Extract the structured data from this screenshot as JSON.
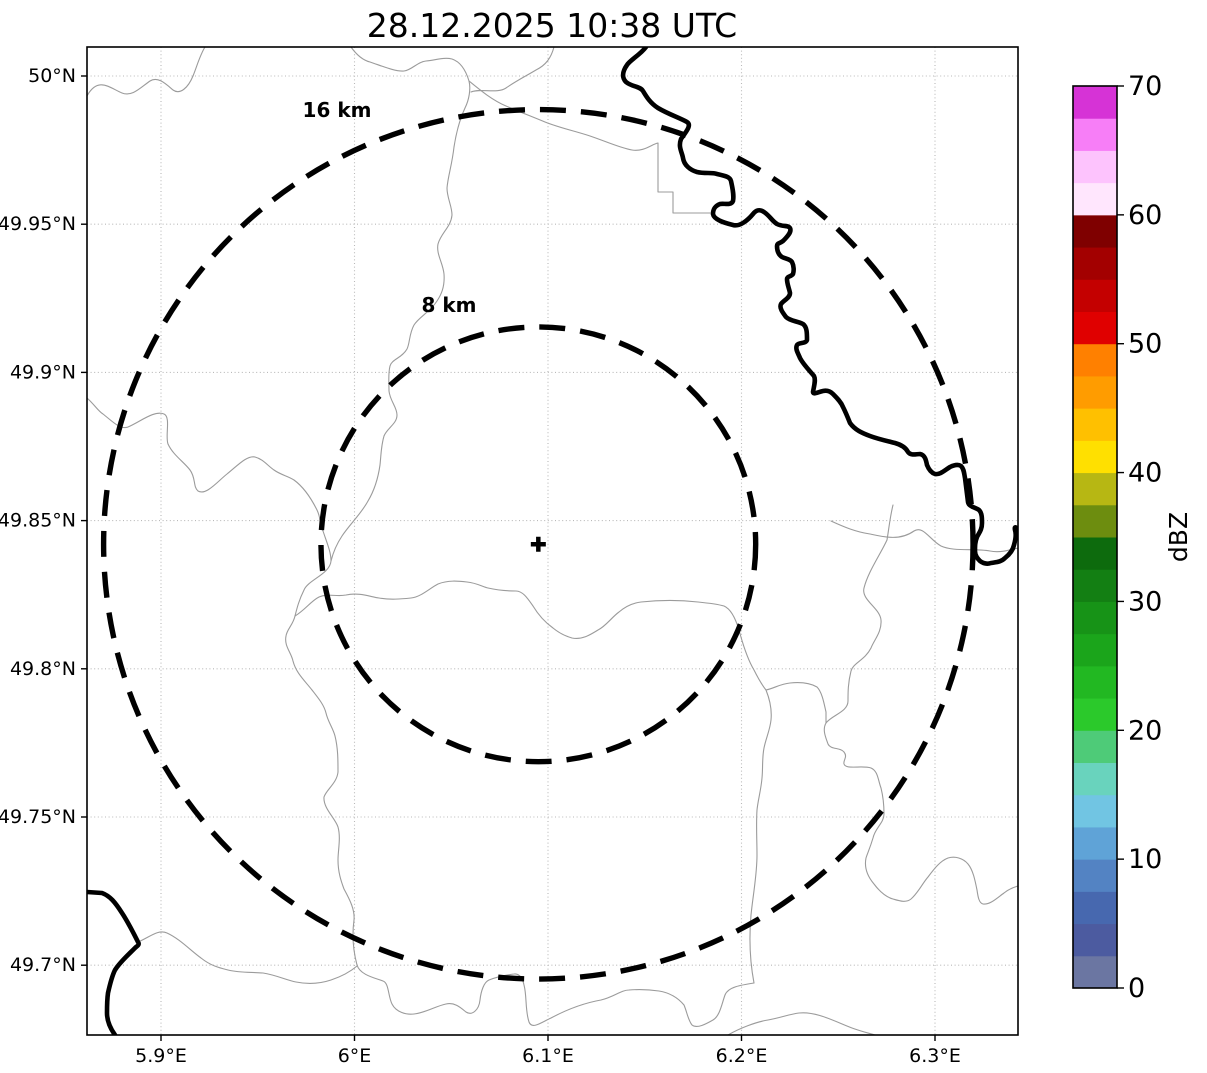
{
  "title": "28.12.2025 10:38 UTC",
  "chart_data": {
    "type": "heatmap",
    "title": "28.12.2025 10:38 UTC",
    "description": "Weather radar reflectivity map with range rings; no precipitation echoes visible (map background only)",
    "grid": true,
    "xlim": [
      5.862,
      6.343
    ],
    "ylim": [
      49.676,
      50.01
    ],
    "x_ticks": [
      {
        "label": "5.9°E",
        "lon": 5.9
      },
      {
        "label": "6°E",
        "lon": 6.0
      },
      {
        "label": "6.1°E",
        "lon": 6.1
      },
      {
        "label": "6.2°E",
        "lon": 6.2
      },
      {
        "label": "6.3°E",
        "lon": 6.3
      }
    ],
    "y_ticks": [
      {
        "label": "50°N",
        "lat": 50.0
      },
      {
        "label": "49.95°N",
        "lat": 49.95
      },
      {
        "label": "49.9°N",
        "lat": 49.9
      },
      {
        "label": "49.85°N",
        "lat": 49.85
      },
      {
        "label": "49.8°N",
        "lat": 49.8
      },
      {
        "label": "49.75°N",
        "lat": 49.75
      },
      {
        "label": "49.7°N",
        "lat": 49.7
      }
    ],
    "center_marker": {
      "lon": 6.095,
      "lat": 49.842,
      "symbol": "+"
    },
    "range_rings": [
      {
        "label": "16 km",
        "radius_km": 16
      },
      {
        "label": "8 km",
        "radius_km": 8
      }
    ],
    "reflectivity_echoes": [],
    "colorbar": {
      "label": "dBZ",
      "min": 0,
      "max": 70,
      "segment_step": 2.5,
      "tick_labels": [
        "0",
        "10",
        "20",
        "30",
        "40",
        "50",
        "60",
        "70"
      ],
      "segment_colors_bottom_to_top": [
        "#6b76a2",
        "#4c5ba0",
        "#4768af",
        "#5383c3",
        "#5fa3d7",
        "#71c5e3",
        "#69d3bd",
        "#4ecb78",
        "#2bc92b",
        "#22b822",
        "#1ba51b",
        "#179317",
        "#137f13",
        "#0d6b0d",
        "#6d8d0f",
        "#b7b713",
        "#ffe000",
        "#ffc000",
        "#ff9c00",
        "#ff8000",
        "#e00000",
        "#c40000",
        "#a30000",
        "#7f0000",
        "#ffe6fd",
        "#fdc3fd",
        "#f77ef7",
        "#d633d6"
      ]
    },
    "line_colors": {
      "rings_and_borders": "#000000",
      "municipal_borders": "#9b9b9b",
      "gridlines": "#b9b9b9"
    }
  }
}
